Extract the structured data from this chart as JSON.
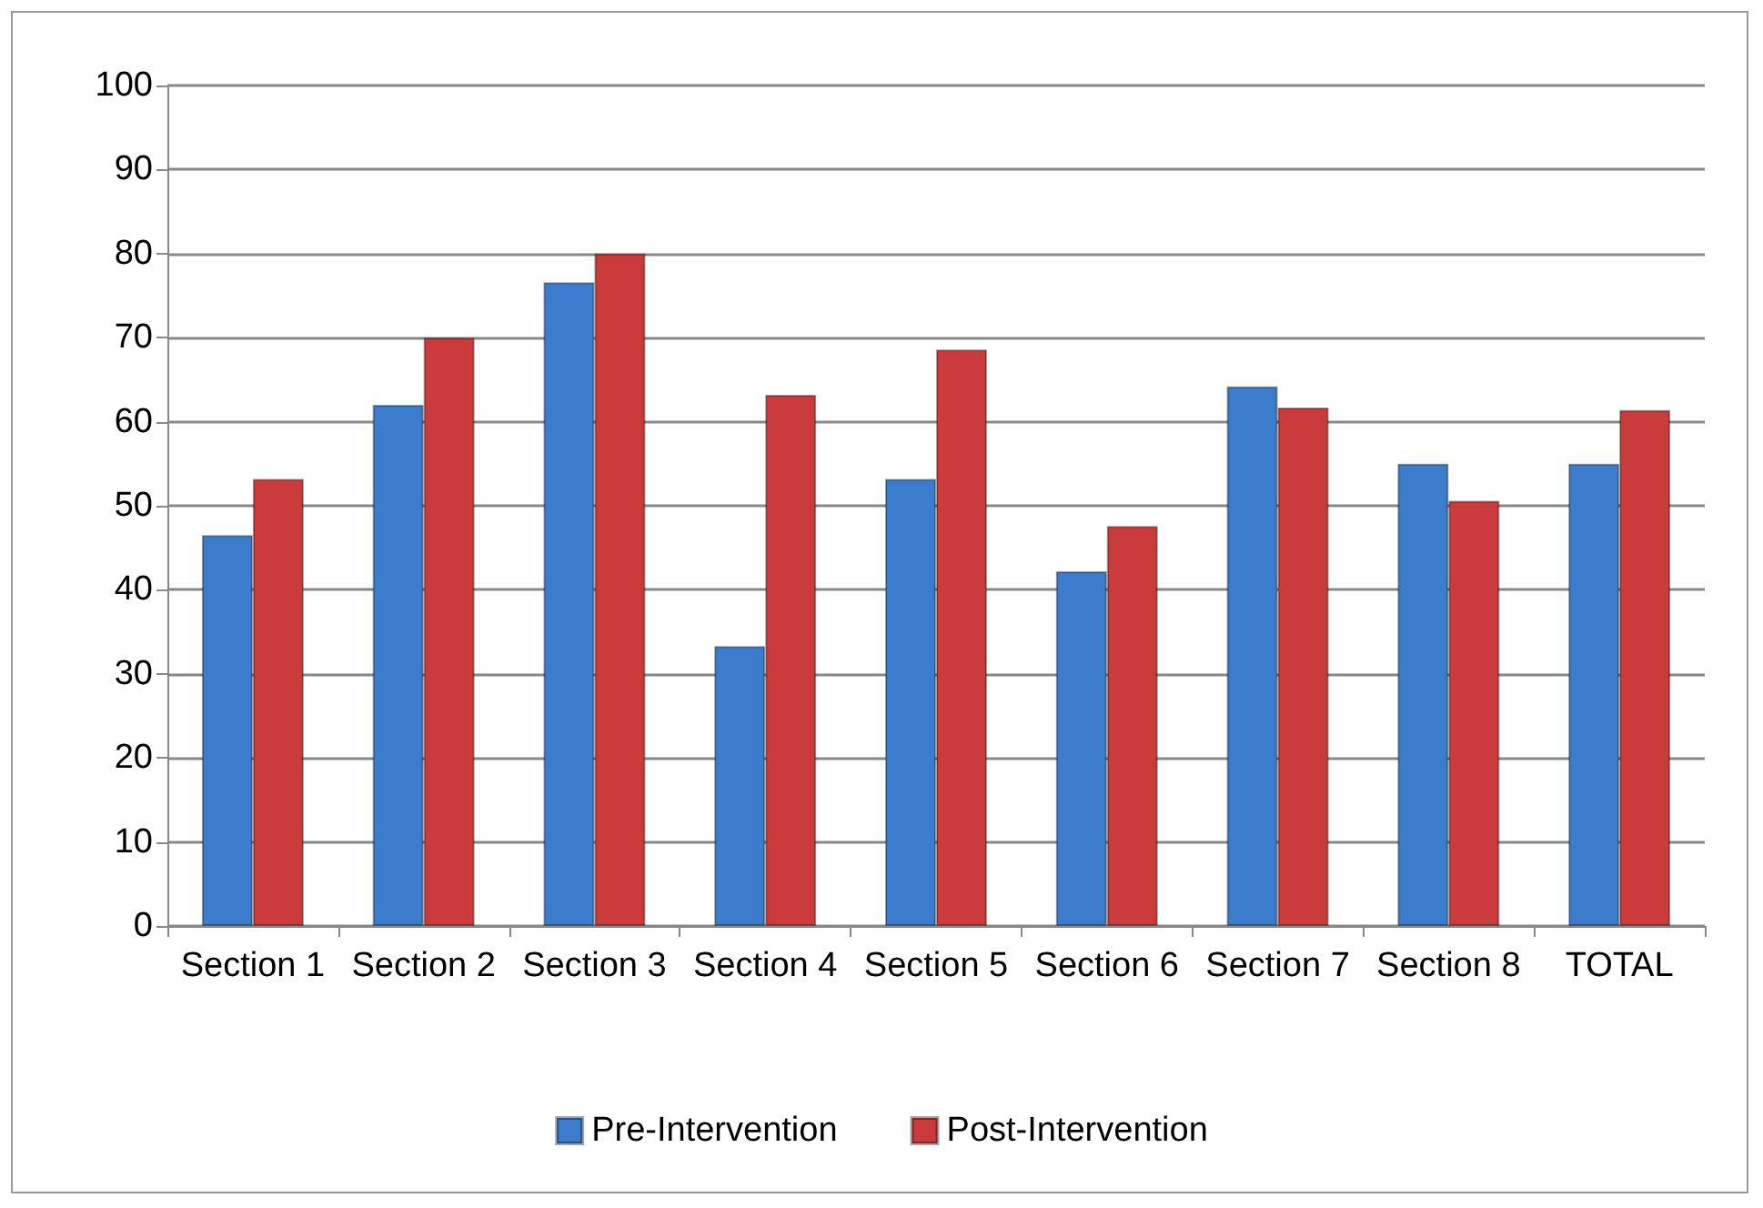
{
  "chart_data": {
    "type": "bar",
    "categories": [
      "Section 1",
      "Section 2",
      "Section 3",
      "Section 4",
      "Section 5",
      "Section 6",
      "Section 7",
      "Section 8",
      "TOTAL"
    ],
    "series": [
      {
        "name": "Pre-Intervention",
        "color": "#3c7ccc",
        "values": [
          46.5,
          62.0,
          76.6,
          33.3,
          53.2,
          42.2,
          64.2,
          55.0,
          55.0
        ]
      },
      {
        "name": "Post-Intervention",
        "color": "#cc3b3b",
        "values": [
          53.2,
          70.0,
          80.0,
          63.2,
          68.6,
          47.6,
          61.7,
          50.6,
          61.4
        ]
      }
    ],
    "ylim": [
      0,
      100
    ],
    "yticks": [
      0,
      10,
      20,
      30,
      40,
      50,
      60,
      70,
      80,
      90,
      100
    ],
    "grid": "y",
    "legend": "bottom"
  }
}
